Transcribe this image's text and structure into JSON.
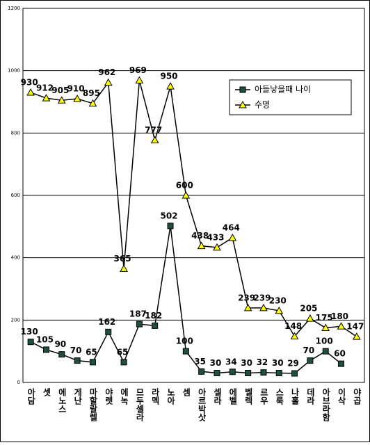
{
  "chart_data": {
    "type": "line",
    "categories": [
      "아담",
      "셋",
      "에노스",
      "게난",
      "마할랄렐",
      "야렛",
      "에녹",
      "므두셀라",
      "라멕",
      "노아",
      "셈",
      "아르박삿",
      "셀라",
      "에벨",
      "벨렉",
      "르우",
      "스룩",
      "나홀",
      "데라",
      "아브라함",
      "이삭",
      "야곱"
    ],
    "series": [
      {
        "name": "아들낳을때 나이",
        "color": "#1f4f3f",
        "marker": "square",
        "values": [
          130,
          105,
          90,
          70,
          65,
          162,
          65,
          187,
          182,
          502,
          100,
          35,
          30,
          34,
          30,
          32,
          30,
          29,
          70,
          100,
          60,
          null
        ]
      },
      {
        "name": "수명",
        "color": "#ffff00",
        "marker": "triangle",
        "values": [
          930,
          912,
          905,
          910,
          895,
          962,
          365,
          969,
          777,
          950,
          600,
          438,
          433,
          464,
          239,
          239,
          230,
          148,
          205,
          175,
          180,
          147
        ]
      }
    ],
    "ylim": [
      0,
      1200
    ],
    "yticks": [
      0,
      200,
      400,
      600,
      800,
      1000,
      1200
    ],
    "grid": true,
    "legend": "upper right"
  }
}
